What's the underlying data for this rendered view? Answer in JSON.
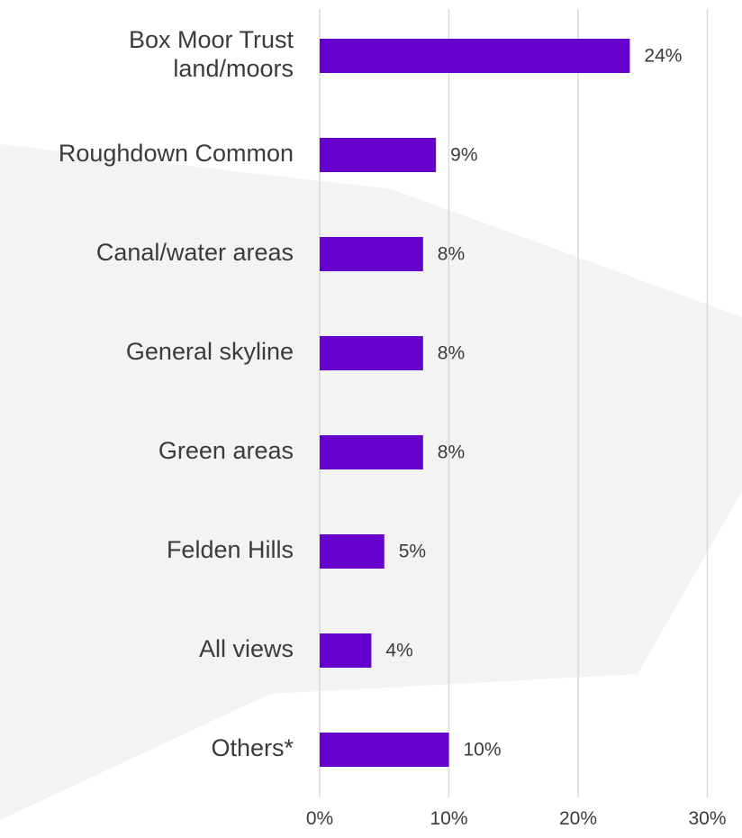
{
  "chart_data": {
    "type": "bar",
    "orientation": "horizontal",
    "categories": [
      "Box Moor Trust land/moors",
      "Roughdown Common",
      "Canal/water areas",
      "General skyline",
      "Green areas",
      "Felden Hills",
      "All views",
      "Others*"
    ],
    "category_lines": [
      [
        "Box Moor Trust",
        "land/moors"
      ],
      [
        "Roughdown Common"
      ],
      [
        "Canal/water areas"
      ],
      [
        "General skyline"
      ],
      [
        "Green areas"
      ],
      [
        "Felden Hills"
      ],
      [
        "All views"
      ],
      [
        "Others*"
      ]
    ],
    "values": [
      24,
      9,
      8,
      8,
      8,
      5,
      4,
      10
    ],
    "value_labels": [
      "24%",
      "9%",
      "8%",
      "8%",
      "8%",
      "5%",
      "4%",
      "10%"
    ],
    "xlim": [
      0,
      30
    ],
    "x_ticks": [
      0,
      10,
      20,
      30
    ],
    "x_tick_labels": [
      "0%",
      "10%",
      "20%",
      "30%"
    ],
    "grid": true,
    "colors": {
      "bar": "#6600cc",
      "gridline": "#d9d9d9",
      "text": "#3b3b3b",
      "background_shape": "#f3f3f3"
    }
  }
}
